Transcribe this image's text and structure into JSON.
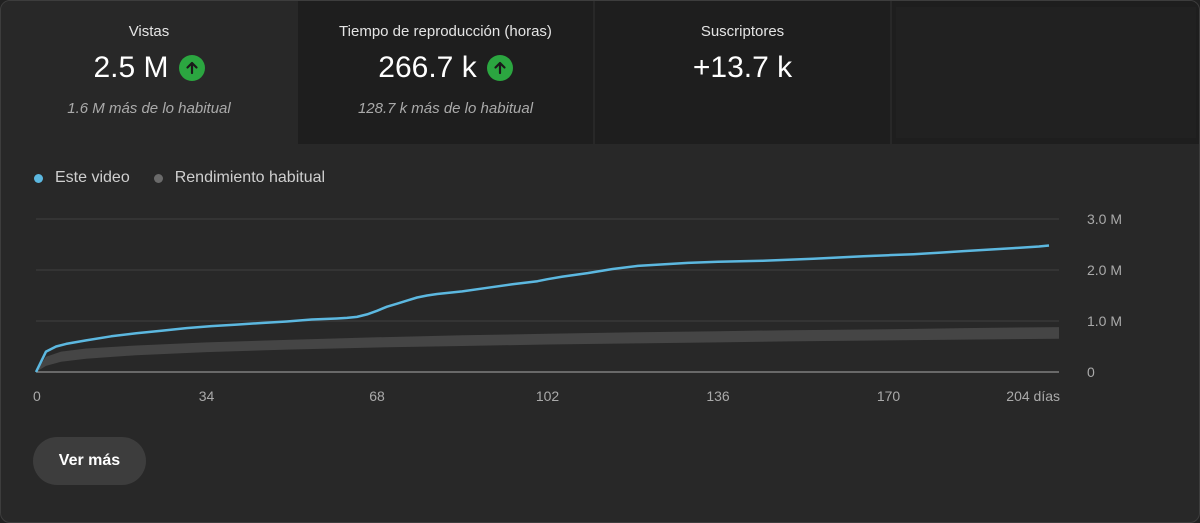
{
  "metrics": [
    {
      "label": "Vistas",
      "value": "2.5 M",
      "trend": "up",
      "sub": "1.6 M más de lo habitual"
    },
    {
      "label": "Tiempo de reproducción (horas)",
      "value": "266.7 k",
      "trend": "up",
      "sub": "128.7 k más de lo habitual"
    },
    {
      "label": "Suscriptores",
      "value": "+13.7 k",
      "trend": "none",
      "sub": ""
    }
  ],
  "legend": {
    "this_video": "Este video",
    "typical": "Rendimiento habitual"
  },
  "colors": {
    "this_video": "#5cb8e0",
    "typical": "#6a6a6a",
    "up": "#2ba640"
  },
  "chart_data": {
    "type": "line",
    "x_ticks": [
      "0",
      "34",
      "68",
      "102",
      "136",
      "170",
      "204 días"
    ],
    "x_tick_values": [
      0,
      34,
      68,
      102,
      136,
      170,
      204
    ],
    "y_ticks": [
      "0",
      "1.0 M",
      "2.0 M",
      "3.0 M"
    ],
    "y_tick_values": [
      0,
      1000000,
      2000000,
      3000000
    ],
    "xlim": [
      0,
      204
    ],
    "ylim": [
      0,
      3000000
    ],
    "legend_position": "top-left",
    "series": [
      {
        "name": "Este video",
        "x": [
          0,
          1,
          2,
          4,
          6,
          10,
          15,
          20,
          25,
          30,
          35,
          40,
          45,
          50,
          55,
          60,
          62,
          64,
          66,
          68,
          70,
          72,
          74,
          76,
          78,
          80,
          85,
          90,
          95,
          100,
          102,
          105,
          110,
          115,
          120,
          125,
          130,
          136,
          145,
          155,
          165,
          170,
          175,
          180,
          185,
          190,
          195,
          200,
          202
        ],
        "y": [
          0,
          200000,
          400000,
          500000,
          550000,
          620000,
          700000,
          760000,
          810000,
          860000,
          900000,
          930000,
          960000,
          990000,
          1030000,
          1050000,
          1060000,
          1080000,
          1130000,
          1200000,
          1280000,
          1340000,
          1400000,
          1460000,
          1500000,
          1530000,
          1580000,
          1650000,
          1720000,
          1780000,
          1820000,
          1870000,
          1940000,
          2020000,
          2080000,
          2110000,
          2140000,
          2160000,
          2180000,
          2220000,
          2270000,
          2290000,
          2310000,
          2340000,
          2370000,
          2400000,
          2430000,
          2460000,
          2480000
        ]
      },
      {
        "name": "Rendimiento habitual",
        "x": [
          0,
          2,
          5,
          10,
          20,
          34,
          50,
          68,
          85,
          102,
          120,
          136,
          150,
          170,
          185,
          204
        ],
        "y_low": [
          0,
          120000,
          200000,
          260000,
          330000,
          390000,
          440000,
          480000,
          510000,
          540000,
          560000,
          580000,
          600000,
          620000,
          635000,
          650000
        ],
        "y_high": [
          0,
          300000,
          400000,
          460000,
          520000,
          580000,
          630000,
          680000,
          720000,
          750000,
          780000,
          800000,
          820000,
          840000,
          860000,
          880000
        ]
      }
    ]
  },
  "button": {
    "label": "Ver más"
  }
}
